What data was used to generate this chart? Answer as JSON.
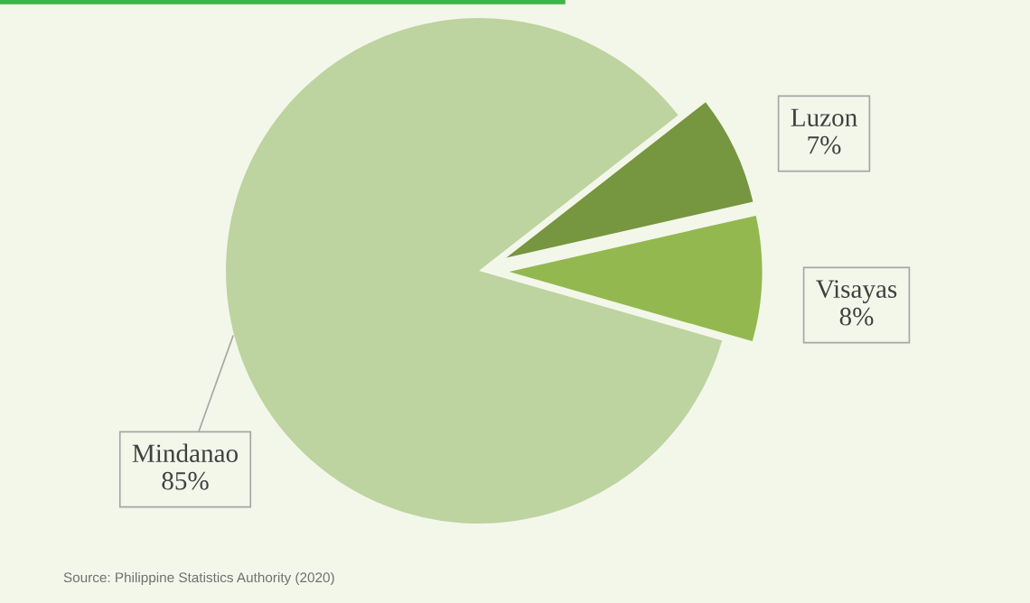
{
  "chart_data": {
    "type": "pie",
    "categories": [
      "Luzon",
      "Visayas",
      "Mindanao"
    ],
    "values": [
      7,
      8,
      85
    ],
    "colors": [
      "#76963f",
      "#93b84f",
      "#bdd3a0"
    ],
    "value_labels": [
      "7%",
      "8%",
      "85%"
    ],
    "annotations": [
      "Source: Philippine Statistics Authority (2020)"
    ]
  }
}
